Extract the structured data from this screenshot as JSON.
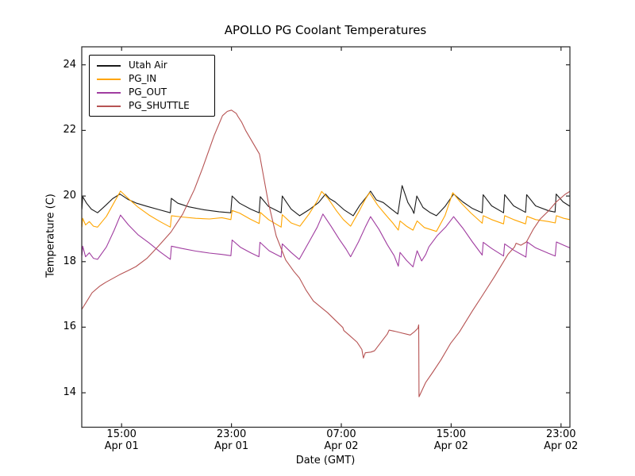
{
  "figure": {
    "background": "#ffffff",
    "frame_color": "#262626"
  },
  "chart_data": {
    "type": "line",
    "title": "APOLLO PG Coolant Temperatures",
    "xlabel": "Date (GMT)",
    "ylabel": "Temperature (C)",
    "x_unit": "hours_since_Apr01_0000_GMT",
    "xlim": [
      12.1,
      47.65
    ],
    "ylim": [
      12.95,
      24.55
    ],
    "grid": false,
    "legend_position": "upper-left",
    "x_ticks": [
      {
        "value": 15,
        "time": "15:00",
        "date": "Apr 01"
      },
      {
        "value": 23,
        "time": "23:00",
        "date": "Apr 01"
      },
      {
        "value": 31,
        "time": "07:00",
        "date": "Apr 02"
      },
      {
        "value": 39,
        "time": "15:00",
        "date": "Apr 02"
      },
      {
        "value": 47,
        "time": "23:00",
        "date": "Apr 02"
      }
    ],
    "y_ticks": [
      {
        "value": 14,
        "label": "14"
      },
      {
        "value": 16,
        "label": "16"
      },
      {
        "value": 18,
        "label": "18"
      },
      {
        "value": 20,
        "label": "20"
      },
      {
        "value": 22,
        "label": "22"
      },
      {
        "value": 24,
        "label": "24"
      }
    ],
    "series": [
      {
        "name": "Utah Air",
        "color": "#1a1a1a",
        "points": [
          [
            12.11,
            19.6
          ],
          [
            12.17,
            19.98
          ],
          [
            12.45,
            19.78
          ],
          [
            12.8,
            19.6
          ],
          [
            13.25,
            19.49
          ],
          [
            13.85,
            19.72
          ],
          [
            14.35,
            19.92
          ],
          [
            14.88,
            20.06
          ],
          [
            15.45,
            19.9
          ],
          [
            16.1,
            19.78
          ],
          [
            16.9,
            19.68
          ],
          [
            17.75,
            19.58
          ],
          [
            18.55,
            19.49
          ],
          [
            18.62,
            19.93
          ],
          [
            19.1,
            19.78
          ],
          [
            19.9,
            19.67
          ],
          [
            21.0,
            19.58
          ],
          [
            22.1,
            19.52
          ],
          [
            22.95,
            19.49
          ],
          [
            23.05,
            20.0
          ],
          [
            23.6,
            19.78
          ],
          [
            24.4,
            19.6
          ],
          [
            25.02,
            19.49
          ],
          [
            25.1,
            19.98
          ],
          [
            25.7,
            19.68
          ],
          [
            26.62,
            19.49
          ],
          [
            26.7,
            20.0
          ],
          [
            27.35,
            19.6
          ],
          [
            27.97,
            19.4
          ],
          [
            28.65,
            19.58
          ],
          [
            29.35,
            19.8
          ],
          [
            29.85,
            20.06
          ],
          [
            30.15,
            19.92
          ],
          [
            30.55,
            19.82
          ],
          [
            31.2,
            19.58
          ],
          [
            31.87,
            19.4
          ],
          [
            32.35,
            19.72
          ],
          [
            32.85,
            19.98
          ],
          [
            33.13,
            20.15
          ],
          [
            33.55,
            19.88
          ],
          [
            34.06,
            19.8
          ],
          [
            34.65,
            19.6
          ],
          [
            35.12,
            19.45
          ],
          [
            35.43,
            20.32
          ],
          [
            35.85,
            19.8
          ],
          [
            36.15,
            19.6
          ],
          [
            36.29,
            19.47
          ],
          [
            36.5,
            20.0
          ],
          [
            36.95,
            19.65
          ],
          [
            37.45,
            19.5
          ],
          [
            37.93,
            19.4
          ],
          [
            38.55,
            19.68
          ],
          [
            39.18,
            20.06
          ],
          [
            39.85,
            19.82
          ],
          [
            40.55,
            19.62
          ],
          [
            41.26,
            19.49
          ],
          [
            41.33,
            20.04
          ],
          [
            41.95,
            19.7
          ],
          [
            42.82,
            19.49
          ],
          [
            42.9,
            20.04
          ],
          [
            43.55,
            19.7
          ],
          [
            44.42,
            19.5
          ],
          [
            44.5,
            20.04
          ],
          [
            45.15,
            19.7
          ],
          [
            46.1,
            19.55
          ],
          [
            46.57,
            19.51
          ],
          [
            46.65,
            20.06
          ],
          [
            47.15,
            19.82
          ],
          [
            47.64,
            19.69
          ]
        ]
      },
      {
        "name": "PG_IN",
        "color": "#FFA500",
        "points": [
          [
            12.11,
            19.05
          ],
          [
            12.17,
            19.32
          ],
          [
            12.38,
            19.12
          ],
          [
            12.65,
            19.22
          ],
          [
            12.95,
            19.08
          ],
          [
            13.25,
            19.05
          ],
          [
            13.9,
            19.38
          ],
          [
            14.45,
            19.8
          ],
          [
            14.92,
            20.15
          ],
          [
            15.5,
            19.92
          ],
          [
            16.2,
            19.66
          ],
          [
            17.0,
            19.42
          ],
          [
            17.8,
            19.22
          ],
          [
            18.55,
            19.05
          ],
          [
            18.63,
            19.4
          ],
          [
            19.4,
            19.36
          ],
          [
            20.4,
            19.32
          ],
          [
            21.4,
            19.3
          ],
          [
            22.3,
            19.34
          ],
          [
            22.96,
            19.28
          ],
          [
            23.05,
            19.56
          ],
          [
            23.6,
            19.48
          ],
          [
            24.35,
            19.3
          ],
          [
            25.02,
            19.16
          ],
          [
            25.1,
            19.5
          ],
          [
            25.7,
            19.28
          ],
          [
            26.62,
            19.05
          ],
          [
            26.7,
            19.43
          ],
          [
            27.35,
            19.18
          ],
          [
            27.99,
            19.08
          ],
          [
            28.65,
            19.45
          ],
          [
            29.25,
            19.85
          ],
          [
            29.57,
            20.14
          ],
          [
            30.05,
            19.92
          ],
          [
            30.65,
            19.55
          ],
          [
            31.15,
            19.28
          ],
          [
            31.68,
            19.08
          ],
          [
            32.25,
            19.5
          ],
          [
            32.75,
            19.9
          ],
          [
            33.06,
            20.1
          ],
          [
            33.65,
            19.72
          ],
          [
            34.25,
            19.42
          ],
          [
            34.75,
            19.18
          ],
          [
            35.15,
            18.96
          ],
          [
            35.28,
            19.24
          ],
          [
            35.75,
            19.08
          ],
          [
            36.22,
            18.96
          ],
          [
            36.52,
            19.24
          ],
          [
            37.05,
            19.04
          ],
          [
            37.93,
            18.92
          ],
          [
            38.55,
            19.4
          ],
          [
            39.12,
            20.1
          ],
          [
            39.75,
            19.78
          ],
          [
            40.45,
            19.48
          ],
          [
            41.26,
            19.17
          ],
          [
            41.34,
            19.4
          ],
          [
            41.95,
            19.28
          ],
          [
            42.82,
            19.15
          ],
          [
            42.9,
            19.4
          ],
          [
            43.55,
            19.28
          ],
          [
            44.42,
            19.15
          ],
          [
            44.52,
            19.38
          ],
          [
            45.15,
            19.28
          ],
          [
            46.1,
            19.22
          ],
          [
            46.58,
            19.18
          ],
          [
            46.67,
            19.4
          ],
          [
            47.2,
            19.32
          ],
          [
            47.64,
            19.28
          ]
        ]
      },
      {
        "name": "PG_OUT",
        "color": "#A03DA0",
        "points": [
          [
            12.11,
            18.18
          ],
          [
            12.17,
            18.47
          ],
          [
            12.38,
            18.15
          ],
          [
            12.65,
            18.27
          ],
          [
            12.95,
            18.1
          ],
          [
            13.25,
            18.07
          ],
          [
            13.9,
            18.45
          ],
          [
            14.45,
            18.95
          ],
          [
            14.92,
            19.42
          ],
          [
            15.5,
            19.12
          ],
          [
            16.2,
            18.82
          ],
          [
            17.0,
            18.57
          ],
          [
            17.8,
            18.3
          ],
          [
            18.55,
            18.07
          ],
          [
            18.63,
            18.47
          ],
          [
            19.4,
            18.4
          ],
          [
            20.4,
            18.32
          ],
          [
            21.4,
            18.26
          ],
          [
            22.3,
            18.22
          ],
          [
            22.96,
            18.18
          ],
          [
            23.05,
            18.66
          ],
          [
            23.65,
            18.44
          ],
          [
            24.4,
            18.27
          ],
          [
            25.0,
            18.15
          ],
          [
            25.08,
            18.59
          ],
          [
            25.75,
            18.33
          ],
          [
            26.62,
            18.14
          ],
          [
            26.7,
            18.54
          ],
          [
            27.35,
            18.28
          ],
          [
            27.94,
            18.07
          ],
          [
            28.65,
            18.6
          ],
          [
            29.25,
            19.05
          ],
          [
            29.66,
            19.45
          ],
          [
            30.25,
            19.08
          ],
          [
            30.85,
            18.68
          ],
          [
            31.35,
            18.38
          ],
          [
            31.68,
            18.15
          ],
          [
            32.25,
            18.6
          ],
          [
            32.75,
            19.05
          ],
          [
            33.13,
            19.37
          ],
          [
            33.75,
            18.98
          ],
          [
            34.35,
            18.52
          ],
          [
            34.85,
            18.18
          ],
          [
            35.15,
            17.86
          ],
          [
            35.28,
            18.28
          ],
          [
            35.75,
            18.04
          ],
          [
            36.22,
            17.84
          ],
          [
            36.52,
            18.33
          ],
          [
            36.85,
            18.02
          ],
          [
            37.15,
            18.22
          ],
          [
            37.38,
            18.45
          ],
          [
            38.0,
            18.8
          ],
          [
            38.6,
            19.05
          ],
          [
            39.18,
            19.37
          ],
          [
            39.85,
            19.02
          ],
          [
            40.55,
            18.6
          ],
          [
            41.26,
            18.2
          ],
          [
            41.34,
            18.59
          ],
          [
            41.95,
            18.4
          ],
          [
            42.82,
            18.17
          ],
          [
            42.9,
            18.54
          ],
          [
            43.55,
            18.35
          ],
          [
            44.45,
            18.14
          ],
          [
            44.54,
            18.6
          ],
          [
            45.15,
            18.42
          ],
          [
            46.1,
            18.25
          ],
          [
            46.58,
            18.17
          ],
          [
            46.67,
            18.6
          ],
          [
            47.2,
            18.5
          ],
          [
            47.64,
            18.42
          ]
        ]
      },
      {
        "name": "PG_SHUTTLE",
        "color": "#B65353",
        "points": [
          [
            12.11,
            16.55
          ],
          [
            12.45,
            16.78
          ],
          [
            12.85,
            17.05
          ],
          [
            13.4,
            17.25
          ],
          [
            13.85,
            17.37
          ],
          [
            14.85,
            17.6
          ],
          [
            15.45,
            17.72
          ],
          [
            16.05,
            17.85
          ],
          [
            16.85,
            18.1
          ],
          [
            17.7,
            18.48
          ],
          [
            18.6,
            18.9
          ],
          [
            19.45,
            19.45
          ],
          [
            20.3,
            20.2
          ],
          [
            20.9,
            20.85
          ],
          [
            21.75,
            21.85
          ],
          [
            22.35,
            22.45
          ],
          [
            22.7,
            22.58
          ],
          [
            23.0,
            22.62
          ],
          [
            23.35,
            22.52
          ],
          [
            23.48,
            22.42
          ],
          [
            23.75,
            22.25
          ],
          [
            24.06,
            21.98
          ],
          [
            25.04,
            21.28
          ],
          [
            25.68,
            19.82
          ],
          [
            26.26,
            18.78
          ],
          [
            26.95,
            18.05
          ],
          [
            27.55,
            17.7
          ],
          [
            27.95,
            17.5
          ],
          [
            28.45,
            17.12
          ],
          [
            28.97,
            16.8
          ],
          [
            29.6,
            16.58
          ],
          [
            30.01,
            16.44
          ],
          [
            30.6,
            16.2
          ],
          [
            31.11,
            15.99
          ],
          [
            31.18,
            15.9
          ],
          [
            31.6,
            15.75
          ],
          [
            32.15,
            15.54
          ],
          [
            32.5,
            15.32
          ],
          [
            32.61,
            15.06
          ],
          [
            32.75,
            15.22
          ],
          [
            33.15,
            15.24
          ],
          [
            33.42,
            15.28
          ],
          [
            33.85,
            15.52
          ],
          [
            34.35,
            15.79
          ],
          [
            34.48,
            15.91
          ],
          [
            34.85,
            15.88
          ],
          [
            35.35,
            15.83
          ],
          [
            36.02,
            15.76
          ],
          [
            36.35,
            15.87
          ],
          [
            36.58,
            15.97
          ],
          [
            36.64,
            16.07
          ],
          [
            36.66,
            13.88
          ],
          [
            37.15,
            14.32
          ],
          [
            37.65,
            14.62
          ],
          [
            38.25,
            15.0
          ],
          [
            38.95,
            15.5
          ],
          [
            39.6,
            15.85
          ],
          [
            40.55,
            16.5
          ],
          [
            41.22,
            16.93
          ],
          [
            42.15,
            17.54
          ],
          [
            43.15,
            18.23
          ],
          [
            43.62,
            18.45
          ],
          [
            43.73,
            18.56
          ],
          [
            44.08,
            18.5
          ],
          [
            44.48,
            18.6
          ],
          [
            45.0,
            19.0
          ],
          [
            45.47,
            19.29
          ],
          [
            46.1,
            19.55
          ],
          [
            46.63,
            19.81
          ],
          [
            47.3,
            20.05
          ],
          [
            47.64,
            20.14
          ]
        ]
      }
    ]
  }
}
